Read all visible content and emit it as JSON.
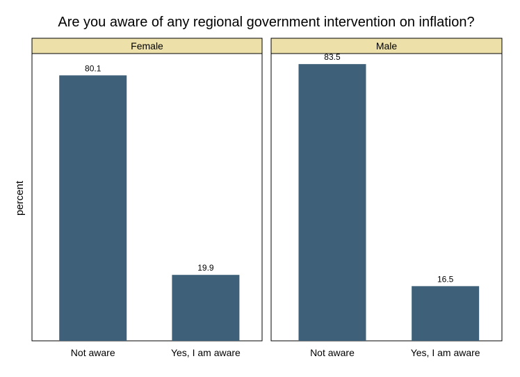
{
  "chart_data": {
    "type": "bar",
    "title": "Are you aware of any regional government intervention on inflation?",
    "ylabel": "percent",
    "xlabel": "",
    "ylim": [
      0,
      85
    ],
    "grid": false,
    "bar_color": "#3e6179",
    "strip_color": "#ede0a8",
    "categories": [
      "Not aware",
      "Yes, I am aware"
    ],
    "panels": [
      {
        "name": "Female",
        "values": [
          80.1,
          19.9
        ],
        "labels": [
          "80.1",
          "19.9"
        ]
      },
      {
        "name": "Male",
        "values": [
          83.5,
          16.5
        ],
        "labels": [
          "83.5",
          "16.5"
        ]
      }
    ]
  }
}
